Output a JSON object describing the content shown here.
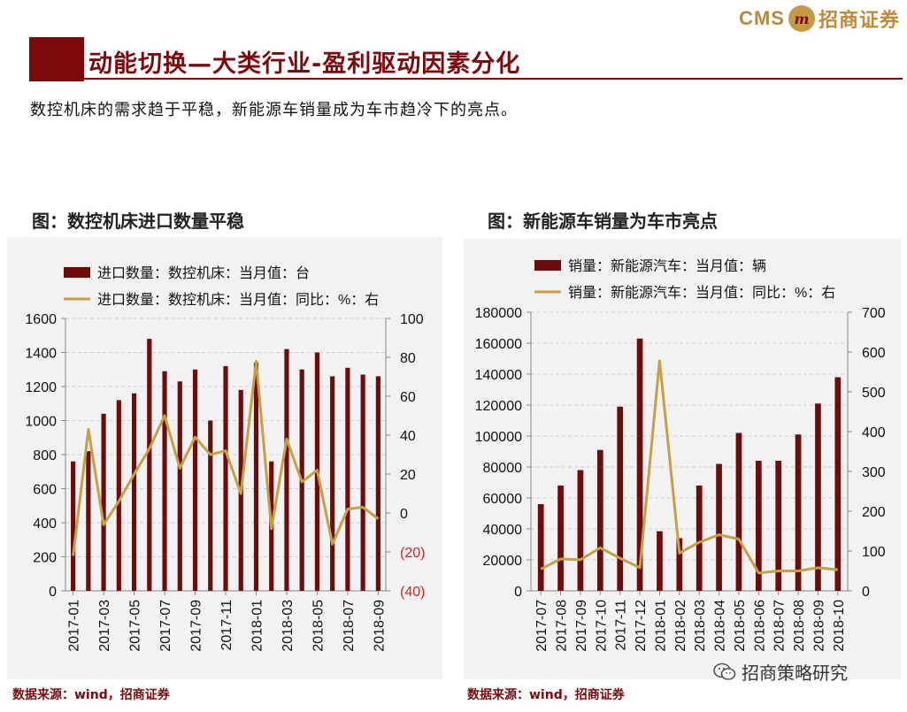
{
  "header": {
    "title": "动能切换—大类行业-盈利驱动因素分化",
    "subtitle": "数控机床的需求趋于平稳，新能源车销量成为车市趋冷下的亮点。",
    "logo_cms": "CMS",
    "logo_mark": "m",
    "logo_text": "招商证券"
  },
  "colors": {
    "bar": "#6e0b0b",
    "line": "#c5a047",
    "accent": "#7a0a0c",
    "negative_tick": "#e02020"
  },
  "left_panel": {
    "title": "图：数控机床进口数量平稳",
    "source": "数据来源：wind，招商证券"
  },
  "right_panel": {
    "title": "图：新能源车销量为车市亮点",
    "source": "数据来源：wind，招商证券"
  },
  "watermark": {
    "text": "招商策略研究",
    "icon": "wechat-icon"
  },
  "chart_data": [
    {
      "type": "bar+line",
      "title": "图：数控机床进口数量平稳",
      "legend": [
        "进口数量：数控机床：当月值：台",
        "进口数量：数控机床：当月值：同比：%：右"
      ],
      "categories": [
        "2017-01",
        "2017-02",
        "2017-03",
        "2017-04",
        "2017-05",
        "2017-06",
        "2017-07",
        "2017-08",
        "2017-09",
        "2017-10",
        "2017-11",
        "2017-12",
        "2018-01",
        "2018-02",
        "2018-03",
        "2018-04",
        "2018-05",
        "2018-06",
        "2018-07",
        "2018-08",
        "2018-09"
      ],
      "x_tick_labels": [
        "2017-01",
        "2017-03",
        "2017-05",
        "2017-07",
        "2017-09",
        "2017-11",
        "2018-01",
        "2018-03",
        "2018-05",
        "2018-07",
        "2018-09"
      ],
      "bar_values": [
        760,
        820,
        1040,
        1120,
        1160,
        1480,
        1290,
        1230,
        1300,
        1000,
        1320,
        1180,
        1340,
        760,
        1420,
        1300,
        1400,
        1260,
        1310,
        1270,
        1260
      ],
      "line_values": [
        -22,
        43,
        -6,
        6,
        20,
        33,
        50,
        23,
        39,
        30,
        32,
        10,
        78,
        -8,
        38,
        16,
        22,
        -16,
        2,
        3,
        -3
      ],
      "y_left_range": [
        0,
        1600
      ],
      "y_left_ticks": [
        "0",
        "200",
        "400",
        "600",
        "800",
        "1000",
        "1200",
        "1400",
        "1600"
      ],
      "y_right_range": [
        -40,
        100
      ],
      "y_right_ticks": [
        "(40)",
        "(20)",
        "0",
        "20",
        "40",
        "60",
        "80",
        "100"
      ],
      "grid": true,
      "legend_position": "top-left"
    },
    {
      "type": "bar+line",
      "title": "图：新能源车销量为车市亮点",
      "legend": [
        "销量：新能源汽车：当月值：辆",
        "销量：新能源汽车：当月值：同比：%：右"
      ],
      "categories": [
        "2017-07",
        "2017-08",
        "2017-09",
        "2017-10",
        "2017-11",
        "2017-12",
        "2018-01",
        "2018-02",
        "2018-03",
        "2018-04",
        "2018-05",
        "2018-06",
        "2018-07",
        "2018-08",
        "2018-09",
        "2018-10"
      ],
      "x_tick_labels": [
        "2017-07",
        "2017-08",
        "2017-09",
        "2017-10",
        "2017-11",
        "2017-12",
        "2018-01",
        "2018-02",
        "2018-03",
        "2018-04",
        "2018-05",
        "2018-06",
        "2018-07",
        "2018-08",
        "2018-09",
        "2018-10"
      ],
      "bar_values": [
        56000,
        68000,
        78000,
        91000,
        119000,
        163000,
        38500,
        34000,
        68000,
        82000,
        102000,
        84000,
        84000,
        101000,
        121000,
        138000
      ],
      "line_values": [
        55,
        80,
        78,
        108,
        82,
        58,
        578,
        95,
        122,
        141,
        130,
        45,
        50,
        50,
        58,
        53
      ],
      "y_left_range": [
        0,
        180000
      ],
      "y_left_ticks": [
        "0",
        "20000",
        "40000",
        "60000",
        "80000",
        "100000",
        "120000",
        "140000",
        "160000",
        "180000"
      ],
      "y_right_range": [
        0,
        700
      ],
      "y_right_ticks": [
        "0",
        "100",
        "200",
        "300",
        "400",
        "500",
        "600",
        "700"
      ],
      "grid": true,
      "legend_position": "top-left"
    }
  ]
}
